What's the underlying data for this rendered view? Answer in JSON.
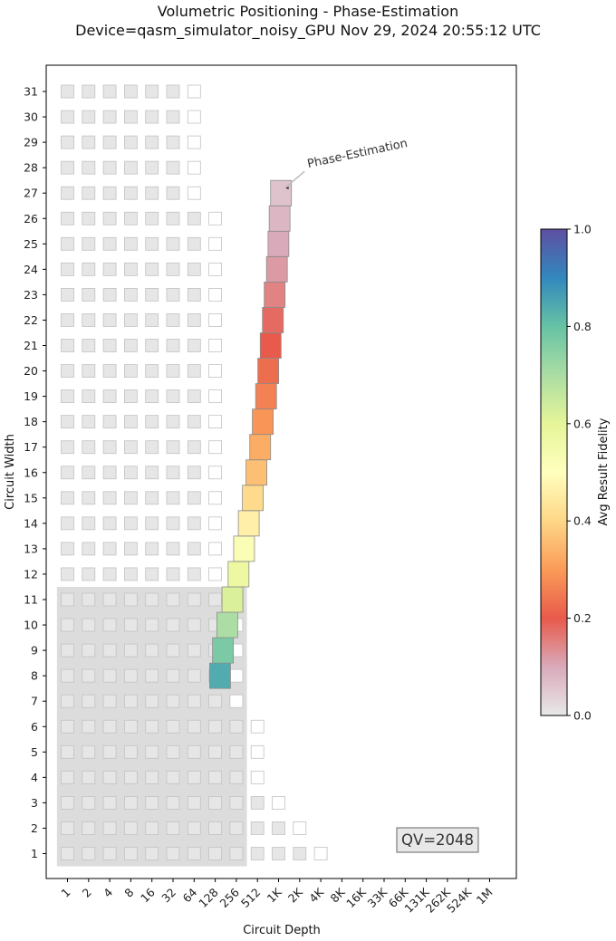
{
  "chart_data": {
    "type": "heatmap",
    "title_line1": "Volumetric Positioning - Phase-Estimation",
    "title_line2": "Device=qasm_simulator_noisy_GPU  Nov 29, 2024 20:55:12 UTC",
    "xlabel": "Circuit Depth",
    "ylabel": "Circuit Width",
    "x_ticks": [
      "1",
      "2",
      "4",
      "8",
      "16",
      "32",
      "64",
      "128",
      "256",
      "512",
      "1K",
      "2K",
      "4K",
      "8K",
      "16K",
      "33K",
      "66K",
      "131K",
      "262K",
      "524K",
      "1M"
    ],
    "y_ticks": [
      "1",
      "2",
      "3",
      "4",
      "5",
      "6",
      "7",
      "8",
      "9",
      "10",
      "11",
      "12",
      "13",
      "14",
      "15",
      "16",
      "17",
      "18",
      "19",
      "20",
      "21",
      "22",
      "23",
      "24",
      "25",
      "26",
      "27",
      "28",
      "29",
      "30",
      "31"
    ],
    "x_scale": "log2",
    "colorbar": {
      "label": "Avg Result Fidelity",
      "ticks": [
        "0.0",
        "0.2",
        "0.4",
        "0.6",
        "0.8",
        "1.0"
      ],
      "range": [
        0,
        1
      ],
      "colormap": "Spectral"
    },
    "quantum_volume": {
      "label": "QV=2048",
      "log2_qv": 11,
      "region_color": "#dcdcdc"
    },
    "reference_grid": [
      {
        "width": 1,
        "max_depth_log2": 12
      },
      {
        "width": 2,
        "max_depth_log2": 11
      },
      {
        "width": 3,
        "max_depth_log2": 10
      },
      {
        "width": 4,
        "max_depth_log2": 9
      },
      {
        "width": 5,
        "max_depth_log2": 9
      },
      {
        "width": 6,
        "max_depth_log2": 9
      },
      {
        "width": 7,
        "max_depth_log2": 8
      },
      {
        "width": 8,
        "max_depth_log2": 8
      },
      {
        "width": 9,
        "max_depth_log2": 8
      },
      {
        "width": 10,
        "max_depth_log2": 8
      },
      {
        "width": 11,
        "max_depth_log2": 8
      },
      {
        "width": 12,
        "max_depth_log2": 7
      },
      {
        "width": 13,
        "max_depth_log2": 7
      },
      {
        "width": 14,
        "max_depth_log2": 7
      },
      {
        "width": 15,
        "max_depth_log2": 7
      },
      {
        "width": 16,
        "max_depth_log2": 7
      },
      {
        "width": 17,
        "max_depth_log2": 7
      },
      {
        "width": 18,
        "max_depth_log2": 7
      },
      {
        "width": 19,
        "max_depth_log2": 7
      },
      {
        "width": 20,
        "max_depth_log2": 7
      },
      {
        "width": 21,
        "max_depth_log2": 7
      },
      {
        "width": 22,
        "max_depth_log2": 7
      },
      {
        "width": 23,
        "max_depth_log2": 7
      },
      {
        "width": 24,
        "max_depth_log2": 7
      },
      {
        "width": 25,
        "max_depth_log2": 7
      },
      {
        "width": 26,
        "max_depth_log2": 7
      },
      {
        "width": 27,
        "max_depth_log2": 6
      },
      {
        "width": 28,
        "max_depth_log2": 6
      },
      {
        "width": 29,
        "max_depth_log2": 6
      },
      {
        "width": 30,
        "max_depth_log2": 6
      },
      {
        "width": 31,
        "max_depth_log2": 6
      }
    ],
    "series": [
      {
        "name": "Phase-Estimation",
        "points": [
          {
            "width": 8,
            "depth": 150,
            "fidelity": 0.84
          },
          {
            "width": 9,
            "depth": 165,
            "fidelity": 0.77
          },
          {
            "width": 10,
            "depth": 190,
            "fidelity": 0.7
          },
          {
            "width": 11,
            "depth": 225,
            "fidelity": 0.62
          },
          {
            "width": 12,
            "depth": 275,
            "fidelity": 0.57
          },
          {
            "width": 13,
            "depth": 330,
            "fidelity": 0.52
          },
          {
            "width": 14,
            "depth": 385,
            "fidelity": 0.46
          },
          {
            "width": 15,
            "depth": 440,
            "fidelity": 0.41
          },
          {
            "width": 16,
            "depth": 495,
            "fidelity": 0.36
          },
          {
            "width": 17,
            "depth": 560,
            "fidelity": 0.33
          },
          {
            "width": 18,
            "depth": 610,
            "fidelity": 0.29
          },
          {
            "width": 19,
            "depth": 680,
            "fidelity": 0.26
          },
          {
            "width": 20,
            "depth": 730,
            "fidelity": 0.23
          },
          {
            "width": 21,
            "depth": 790,
            "fidelity": 0.2
          },
          {
            "width": 22,
            "depth": 850,
            "fidelity": 0.18
          },
          {
            "width": 23,
            "depth": 900,
            "fidelity": 0.15
          },
          {
            "width": 24,
            "depth": 970,
            "fidelity": 0.12
          },
          {
            "width": 25,
            "depth": 1020,
            "fidelity": 0.1
          },
          {
            "width": 26,
            "depth": 1060,
            "fidelity": 0.08
          },
          {
            "width": 27,
            "depth": 1110,
            "fidelity": 0.06
          }
        ]
      }
    ],
    "annotation": {
      "text": "Phase-Estimation",
      "points_to_width": 27
    }
  }
}
